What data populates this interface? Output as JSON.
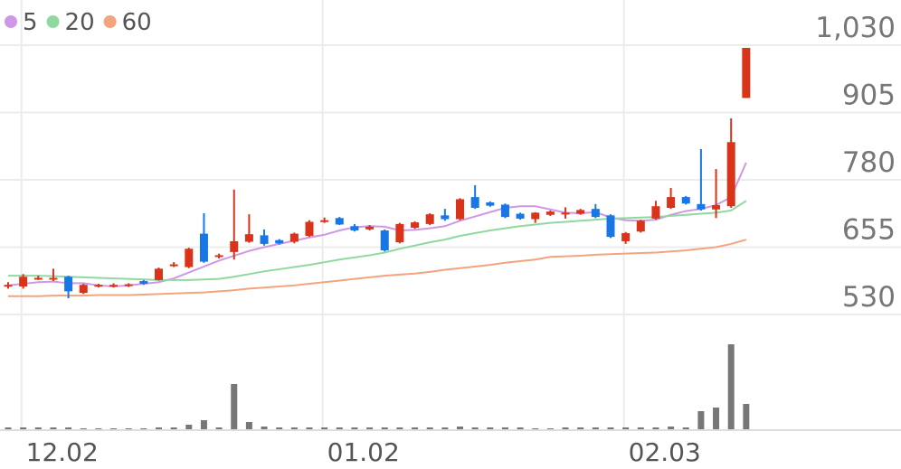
{
  "chart_data": {
    "type": "candlestick",
    "categories": [
      null,
      "12.02",
      null,
      null,
      null,
      null,
      null,
      null,
      null,
      null,
      null,
      null,
      null,
      null,
      null,
      null,
      null,
      null,
      null,
      null,
      null,
      "01.02",
      null,
      null,
      null,
      null,
      null,
      null,
      null,
      null,
      null,
      null,
      null,
      null,
      null,
      null,
      null,
      null,
      null,
      null,
      null,
      "02.03",
      null,
      null,
      null,
      null,
      null,
      null,
      null,
      null
    ],
    "open": [
      583,
      582,
      596,
      597,
      600,
      570,
      583,
      583,
      583,
      592,
      594,
      620,
      618,
      680,
      637,
      646,
      665,
      677,
      668,
      665,
      676,
      703,
      709,
      694,
      688,
      686,
      664,
      691,
      698,
      714,
      707,
      748,
      738,
      734,
      717,
      707,
      715,
      718,
      717,
      726,
      714,
      666,
      684,
      708,
      728,
      748,
      735,
      725,
      731,
      932
    ],
    "high": [
      590,
      605,
      602,
      615,
      602,
      587,
      587,
      588,
      588,
      594,
      617,
      627,
      654,
      718,
      643,
      762,
      716,
      688,
      670,
      682,
      705,
      710,
      711,
      698,
      696,
      688,
      700,
      703,
      718,
      726,
      746,
      770,
      740,
      736,
      719,
      720,
      723,
      729,
      726,
      735,
      716,
      683,
      706,
      741,
      765,
      750,
      837,
      800,
      894,
      1025
    ],
    "low": [
      578,
      578,
      594,
      592,
      560,
      568,
      580,
      580,
      581,
      585,
      593,
      618,
      616,
      626,
      634,
      632,
      663,
      658,
      660,
      662,
      674,
      700,
      696,
      684,
      686,
      647,
      662,
      689,
      696,
      704,
      705,
      726,
      730,
      709,
      706,
      700,
      713,
      708,
      715,
      709,
      672,
      661,
      682,
      706,
      726,
      734,
      723,
      709,
      728,
      932
    ],
    "close": [
      585,
      600,
      598,
      598,
      573,
      585,
      585,
      585,
      586,
      587,
      615,
      623,
      652,
      628,
      640,
      666,
      679,
      661,
      662,
      680,
      702,
      705,
      697,
      686,
      693,
      649,
      698,
      701,
      716,
      707,
      744,
      728,
      732,
      711,
      708,
      719,
      721,
      719,
      724,
      711,
      674,
      681,
      704,
      731,
      748,
      736,
      725,
      733,
      850,
      1025
    ],
    "up_color": "#d9331a",
    "down_color": "#1877e6",
    "moving_averages": [
      {
        "name": "5",
        "color": "#cf97e6",
        "values": [
          584,
          587,
          590,
          591,
          588,
          588,
          584,
          582,
          584,
          587,
          590,
          597,
          608,
          619,
          630,
          639,
          648,
          655,
          661,
          667,
          673,
          678,
          686,
          692,
          694,
          693,
          686,
          687,
          690,
          694,
          704,
          712,
          720,
          728,
          731,
          731,
          725,
          719,
          718,
          720,
          710,
          705,
          704,
          706,
          715,
          722,
          726,
          733,
          748,
          812
        ]
      },
      {
        "name": "20",
        "color": "#8fd9a0",
        "values": [
          602,
          602,
          602,
          601,
          600,
          599,
          598,
          597,
          596,
          595,
          594,
          594,
          594,
          595,
          596,
          600,
          605,
          610,
          614,
          618,
          622,
          627,
          632,
          636,
          640,
          645,
          652,
          658,
          664,
          669,
          676,
          681,
          686,
          690,
          694,
          697,
          700,
          702,
          704,
          706,
          708,
          709,
          710,
          711,
          713,
          715,
          717,
          719,
          723,
          741
        ]
      },
      {
        "name": "60",
        "color": "#f4a47c",
        "values": [
          564,
          564,
          564,
          565,
          565,
          565,
          566,
          566,
          566,
          567,
          568,
          569,
          570,
          571,
          573,
          575,
          578,
          580,
          582,
          584,
          587,
          590,
          593,
          596,
          599,
          602,
          604,
          606,
          609,
          613,
          616,
          619,
          622,
          626,
          629,
          632,
          637,
          638,
          639,
          641,
          642,
          643,
          644,
          645,
          647,
          649,
          652,
          655,
          661,
          669
        ]
      }
    ],
    "volume": {
      "color": "#777777",
      "values": [
        2,
        2,
        2,
        2,
        2,
        1,
        1,
        1,
        1,
        1,
        2,
        2,
        5,
        10,
        2,
        50,
        8,
        3,
        2,
        2,
        2,
        2,
        2,
        2,
        2,
        2,
        2,
        2,
        2,
        2,
        3,
        2,
        2,
        2,
        2,
        1,
        1,
        2,
        2,
        2,
        2,
        2,
        2,
        2,
        3,
        2,
        20,
        24,
        94,
        28
      ]
    },
    "ylim": [
      530,
      1030
    ],
    "yticks": [
      530,
      655,
      780,
      905,
      {
        "value": 1030,
        "label": "1,030"
      }
    ],
    "grid": true
  }
}
